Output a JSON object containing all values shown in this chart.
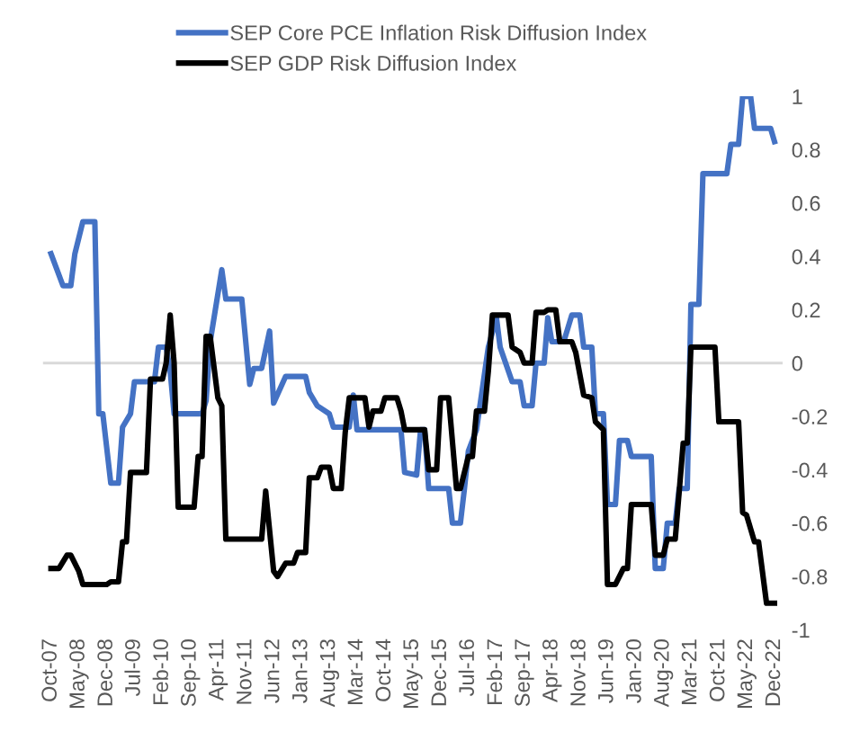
{
  "chart_data": {
    "type": "line",
    "series": [
      {
        "name": "SEP Core PCE Inflation Risk Diffusion Index",
        "color": "#4472c4",
        "x": [
          "2007-10",
          "2008-01",
          "2008-03",
          "2008-04",
          "2008-06",
          "2008-09",
          "2008-10",
          "2008-11",
          "2009-01",
          "2009-03",
          "2009-04",
          "2009-06",
          "2009-07",
          "2009-12",
          "2010-01",
          "2010-03",
          "2010-04",
          "2010-05",
          "2010-12",
          "2011-01",
          "2011-02",
          "2011-05",
          "2011-06",
          "2011-10",
          "2011-12",
          "2012-01",
          "2012-03",
          "2012-05",
          "2012-06",
          "2012-09",
          "2013-02",
          "2013-03",
          "2013-05",
          "2013-08",
          "2013-09",
          "2014-01",
          "2014-02",
          "2014-03",
          "2015-02",
          "2015-03",
          "2015-06",
          "2015-07",
          "2015-08",
          "2015-09",
          "2016-02",
          "2016-03",
          "2016-05",
          "2016-06",
          "2016-07",
          "2016-09",
          "2016-12",
          "2017-02",
          "2017-03",
          "2017-06",
          "2017-08",
          "2017-09",
          "2017-11",
          "2017-12",
          "2018-02",
          "2018-03",
          "2018-04",
          "2018-07",
          "2018-09",
          "2018-11",
          "2018-12",
          "2019-02",
          "2019-03",
          "2019-05",
          "2019-06",
          "2019-08",
          "2019-09",
          "2019-11",
          "2019-12",
          "2020-05",
          "2020-06",
          "2020-08",
          "2020-09",
          "2020-11",
          "2020-12",
          "2021-02",
          "2021-03",
          "2021-05",
          "2021-06",
          "2021-12",
          "2022-01",
          "2022-03",
          "2022-04",
          "2022-06",
          "2022-07",
          "2022-11",
          "2022-12"
        ],
        "values": [
          0.41,
          0.29,
          0.29,
          0.41,
          0.53,
          0.53,
          -0.19,
          -0.19,
          -0.45,
          -0.45,
          -0.24,
          -0.19,
          -0.07,
          -0.07,
          0.06,
          0.06,
          -0.03,
          -0.19,
          -0.19,
          -0.14,
          0.08,
          0.35,
          0.24,
          0.24,
          -0.08,
          -0.02,
          -0.02,
          0.12,
          -0.15,
          -0.05,
          -0.05,
          -0.11,
          -0.16,
          -0.19,
          -0.24,
          -0.24,
          -0.12,
          -0.25,
          -0.25,
          -0.41,
          -0.42,
          -0.25,
          -0.25,
          -0.47,
          -0.47,
          -0.6,
          -0.6,
          -0.47,
          -0.33,
          -0.25,
          0.06,
          0.17,
          0.06,
          -0.07,
          -0.07,
          -0.16,
          -0.16,
          0,
          0,
          0.17,
          0.08,
          0.08,
          0.18,
          0.18,
          0.06,
          0.06,
          -0.19,
          -0.19,
          -0.53,
          -0.53,
          -0.29,
          -0.29,
          -0.35,
          -0.35,
          -0.77,
          -0.77,
          -0.6,
          -0.6,
          -0.47,
          -0.47,
          0.22,
          0.22,
          0.71,
          0.71,
          0.82,
          0.82,
          1.0,
          1.0,
          0.88,
          0.88,
          0.83
        ]
      },
      {
        "name": "SEP GDP Risk Diffusion Index",
        "color": "#000000",
        "x": [
          "2007-10",
          "2007-12",
          "2008-02",
          "2008-03",
          "2008-05",
          "2008-06",
          "2008-12",
          "2009-01",
          "2009-03",
          "2009-04",
          "2009-05",
          "2009-06",
          "2009-10",
          "2009-11",
          "2010-02",
          "2010-03",
          "2010-04",
          "2010-05",
          "2010-06",
          "2010-10",
          "2010-11",
          "2010-12",
          "2011-01",
          "2011-02",
          "2011-04",
          "2011-05",
          "2011-06",
          "2012-03",
          "2012-04",
          "2012-06",
          "2012-07",
          "2012-09",
          "2012-11",
          "2012-12",
          "2013-02",
          "2013-03",
          "2013-05",
          "2013-06",
          "2013-08",
          "2013-09",
          "2013-11",
          "2013-12",
          "2014-01",
          "2014-05",
          "2014-06",
          "2014-07",
          "2014-09",
          "2014-10",
          "2015-01",
          "2015-02",
          "2015-03",
          "2015-08",
          "2015-09",
          "2015-11",
          "2015-12",
          "2016-02",
          "2016-04",
          "2016-05",
          "2016-07",
          "2016-08",
          "2016-09",
          "2016-11",
          "2016-12",
          "2017-01",
          "2017-05",
          "2017-06",
          "2017-08",
          "2017-09",
          "2017-11",
          "2017-12",
          "2018-02",
          "2018-03",
          "2018-05",
          "2018-06",
          "2018-09",
          "2018-10",
          "2018-12",
          "2019-02",
          "2019-03",
          "2019-05",
          "2019-06",
          "2019-08",
          "2019-10",
          "2019-11",
          "2019-12",
          "2020-05",
          "2020-06",
          "2020-08",
          "2020-09",
          "2020-11",
          "2021-01",
          "2021-02",
          "2021-03",
          "2021-09",
          "2021-10",
          "2022-03",
          "2022-04",
          "2022-05",
          "2022-07",
          "2022-08",
          "2022-10",
          "2022-12"
        ],
        "values": [
          -0.77,
          -0.77,
          -0.72,
          -0.72,
          -0.78,
          -0.83,
          -0.83,
          -0.82,
          -0.82,
          -0.67,
          -0.67,
          -0.41,
          -0.41,
          -0.06,
          -0.06,
          0,
          0.18,
          0,
          -0.54,
          -0.54,
          -0.35,
          -0.35,
          0.1,
          0.1,
          -0.13,
          -0.16,
          -0.66,
          -0.66,
          -0.48,
          -0.78,
          -0.8,
          -0.75,
          -0.75,
          -0.71,
          -0.71,
          -0.43,
          -0.43,
          -0.39,
          -0.39,
          -0.47,
          -0.47,
          -0.26,
          -0.13,
          -0.13,
          -0.24,
          -0.18,
          -0.18,
          -0.13,
          -0.13,
          -0.18,
          -0.25,
          -0.25,
          -0.4,
          -0.4,
          -0.13,
          -0.13,
          -0.47,
          -0.47,
          -0.35,
          -0.35,
          -0.18,
          -0.18,
          -0.03,
          0.18,
          0.18,
          0.06,
          0.04,
          0,
          0,
          0.19,
          0.19,
          0.2,
          0.2,
          0.08,
          0.08,
          0.04,
          -0.12,
          -0.13,
          -0.22,
          -0.25,
          -0.83,
          -0.83,
          -0.77,
          -0.77,
          -0.53,
          -0.53,
          -0.72,
          -0.72,
          -0.66,
          -0.66,
          -0.3,
          -0.3,
          0.06,
          0.06,
          -0.22,
          -0.22,
          -0.56,
          -0.57,
          -0.67,
          -0.67,
          -0.9,
          -0.9
        ]
      }
    ],
    "xlim": [
      "2007-08",
      "2023-02"
    ],
    "xticks": [
      {
        "value": "2007-10",
        "label": "Oct-07"
      },
      {
        "value": "2008-05",
        "label": "May-08"
      },
      {
        "value": "2008-12",
        "label": "Dec-08"
      },
      {
        "value": "2009-07",
        "label": "Jul-09"
      },
      {
        "value": "2010-02",
        "label": "Feb-10"
      },
      {
        "value": "2010-09",
        "label": "Sep-10"
      },
      {
        "value": "2011-04",
        "label": "Apr-11"
      },
      {
        "value": "2011-11",
        "label": "Nov-11"
      },
      {
        "value": "2012-06",
        "label": "Jun-12"
      },
      {
        "value": "2013-01",
        "label": "Jan-13"
      },
      {
        "value": "2013-08",
        "label": "Aug-13"
      },
      {
        "value": "2014-03",
        "label": "Mar-14"
      },
      {
        "value": "2014-10",
        "label": "Oct-14"
      },
      {
        "value": "2015-05",
        "label": "May-15"
      },
      {
        "value": "2015-12",
        "label": "Dec-15"
      },
      {
        "value": "2016-07",
        "label": "Jul-16"
      },
      {
        "value": "2017-02",
        "label": "Feb-17"
      },
      {
        "value": "2017-09",
        "label": "Sep-17"
      },
      {
        "value": "2018-04",
        "label": "Apr-18"
      },
      {
        "value": "2018-11",
        "label": "Nov-18"
      },
      {
        "value": "2019-06",
        "label": "Jun-19"
      },
      {
        "value": "2020-01",
        "label": "Jan-20"
      },
      {
        "value": "2020-08",
        "label": "Aug-20"
      },
      {
        "value": "2021-03",
        "label": "Mar-21"
      },
      {
        "value": "2021-10",
        "label": "Oct-21"
      },
      {
        "value": "2022-05",
        "label": "May-22"
      },
      {
        "value": "2022-12",
        "label": "Dec-22"
      }
    ],
    "ylim": [
      -1,
      1
    ],
    "yticks": [
      -1,
      -0.8,
      -0.6,
      -0.4,
      -0.2,
      0,
      0.2,
      0.4,
      0.6,
      0.8,
      1
    ],
    "ref_lines": [
      {
        "axis": "y",
        "value": 0,
        "color": "#d9d9d9"
      }
    ],
    "grid": false,
    "legend": "top",
    "marker": "none",
    "line_style": "solid"
  }
}
